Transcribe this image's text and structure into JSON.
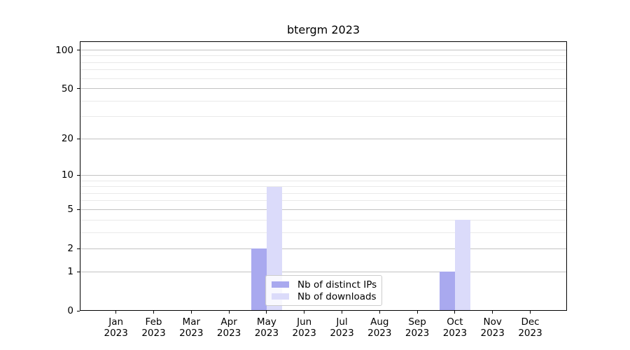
{
  "chart_data": {
    "type": "bar",
    "title": "btergm 2023",
    "categories": [
      "Jan 2023",
      "Feb 2023",
      "Mar 2023",
      "Apr 2023",
      "May 2023",
      "Jun 2023",
      "Jul 2023",
      "Aug 2023",
      "Sep 2023",
      "Oct 2023",
      "Nov 2023",
      "Dec 2023"
    ],
    "x_tick_month": [
      "Jan",
      "Feb",
      "Mar",
      "Apr",
      "May",
      "Jun",
      "Jul",
      "Aug",
      "Sep",
      "Oct",
      "Nov",
      "Dec"
    ],
    "x_tick_year": [
      "2023",
      "2023",
      "2023",
      "2023",
      "2023",
      "2023",
      "2023",
      "2023",
      "2023",
      "2023",
      "2023",
      "2023"
    ],
    "series": [
      {
        "name": "Nb of distinct IPs",
        "color": "#a9a9ef",
        "values": [
          0,
          0,
          0,
          0,
          2,
          0,
          0,
          0,
          0,
          1,
          0,
          0
        ]
      },
      {
        "name": "Nb of downloads",
        "color": "#dbdbfa",
        "values": [
          0,
          0,
          0,
          0,
          8,
          0,
          0,
          0,
          0,
          4,
          0,
          0
        ]
      }
    ],
    "y_axis": {
      "scale": "log1p",
      "major_ticks": [
        0,
        1,
        2,
        5,
        10,
        20,
        50,
        100
      ],
      "minor_ticks": [
        3,
        4,
        6,
        7,
        8,
        9,
        30,
        40,
        60,
        70,
        80,
        90
      ],
      "ylim": [
        0,
        117
      ]
    },
    "grid": true,
    "legend_position": "lower center"
  },
  "colors": {
    "bar_distinct_ips": "#a9a9ef",
    "bar_downloads": "#dbdbfa",
    "grid_major": "#c2c2c2",
    "grid_minor": "#e9e9e9",
    "axis": "#000000",
    "legend_border": "#cccccc",
    "background": "#ffffff",
    "text": "#000000"
  }
}
